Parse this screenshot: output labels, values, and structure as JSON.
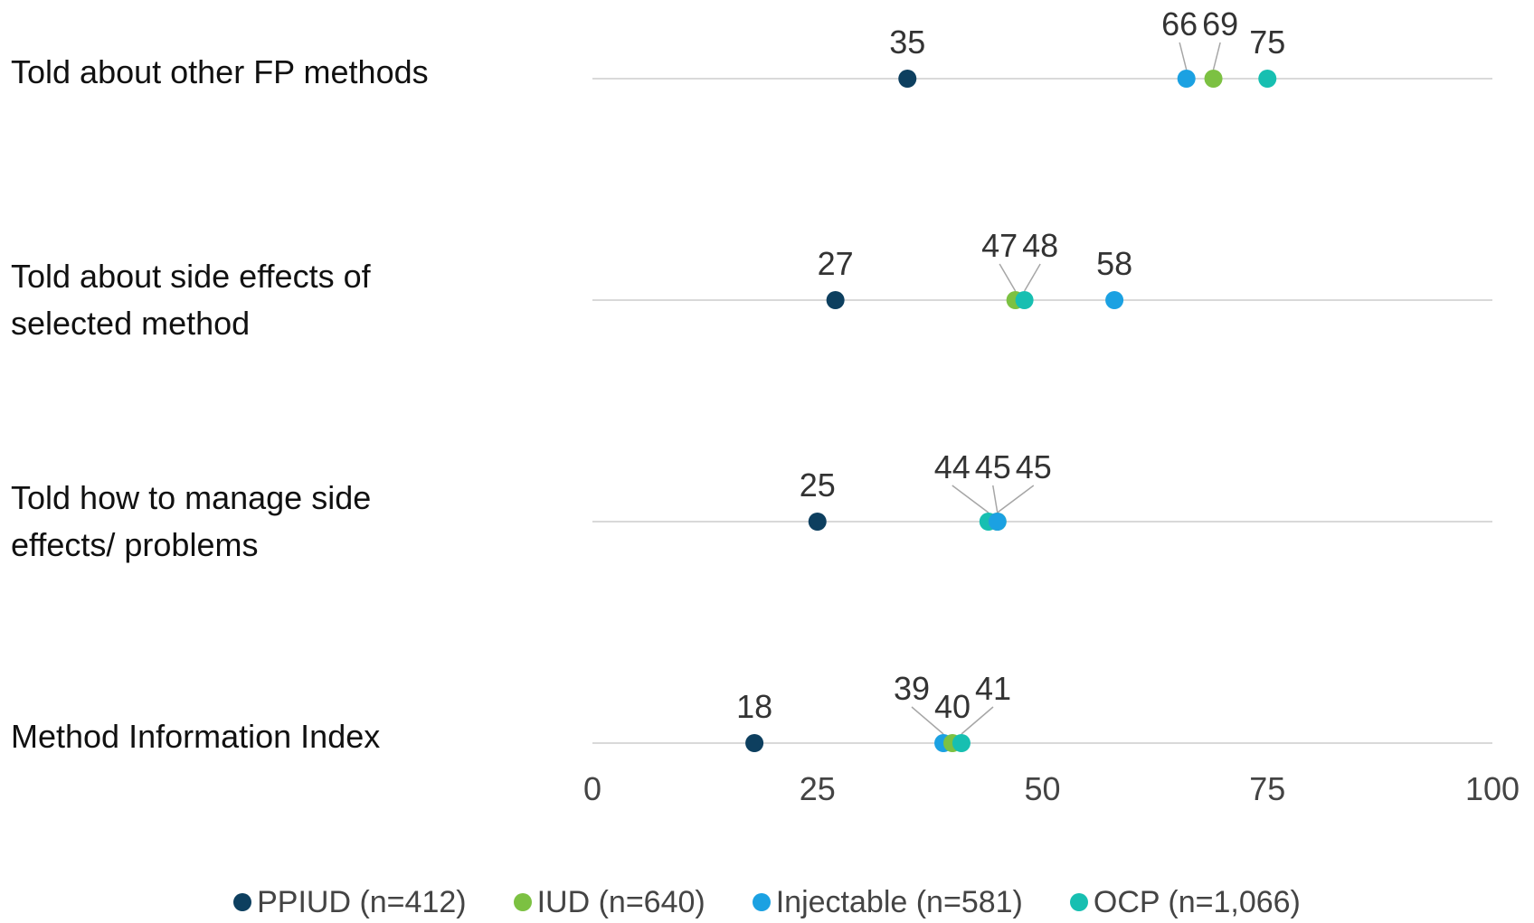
{
  "chart_data": {
    "type": "scatter",
    "title": "",
    "xlabel": "",
    "ylabel": "",
    "xlim": [
      0,
      100
    ],
    "x_ticks": [
      "0",
      "25",
      "50",
      "75",
      "100"
    ],
    "grid": false,
    "legend_position": "bottom",
    "categories": [
      [
        "Told about other FP methods"
      ],
      [
        "Told about side effects of",
        "selected method"
      ],
      [
        "Told how to manage side",
        "effects/ problems"
      ],
      [
        "Method Information Index"
      ]
    ],
    "series": [
      {
        "name": "PPIUD (n=412)",
        "color": "#0d3f5f",
        "values": [
          35,
          27,
          25,
          18
        ]
      },
      {
        "name": "IUD (n=640)",
        "color": "#7cc142",
        "values": [
          69,
          47,
          45,
          40
        ]
      },
      {
        "name": "Injectable (n=581)",
        "color": "#1ba1e2",
        "values": [
          66,
          58,
          45,
          39
        ]
      },
      {
        "name": "OCP (n=1,066)",
        "color": "#17bfb1",
        "values": [
          75,
          48,
          44,
          41
        ]
      }
    ]
  }
}
